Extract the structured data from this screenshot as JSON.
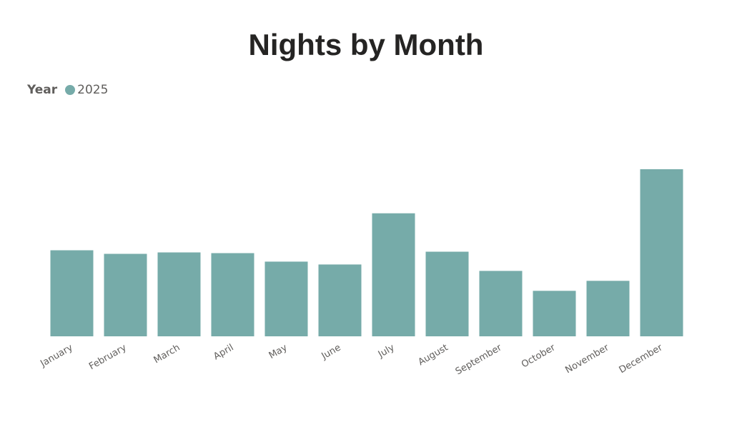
{
  "chart_data": {
    "type": "bar",
    "title": "Nights by Month",
    "legend": {
      "title": "Year",
      "position": "top-left",
      "entries": [
        {
          "name": "2025",
          "color": "#76ABA9"
        }
      ]
    },
    "categories": [
      "January",
      "February",
      "March",
      "April",
      "May",
      "June",
      "July",
      "August",
      "September",
      "October",
      "November",
      "December"
    ],
    "series": [
      {
        "name": "2025",
        "color": "#76ABA9",
        "values": [
          121,
          116,
          118,
          117,
          105,
          101,
          173,
          119,
          92,
          64,
          78,
          235
        ]
      }
    ],
    "xlabel": "",
    "ylabel": "",
    "ylim": [
      0,
      235
    ],
    "grid": false,
    "x_tick_rotation": -30
  }
}
